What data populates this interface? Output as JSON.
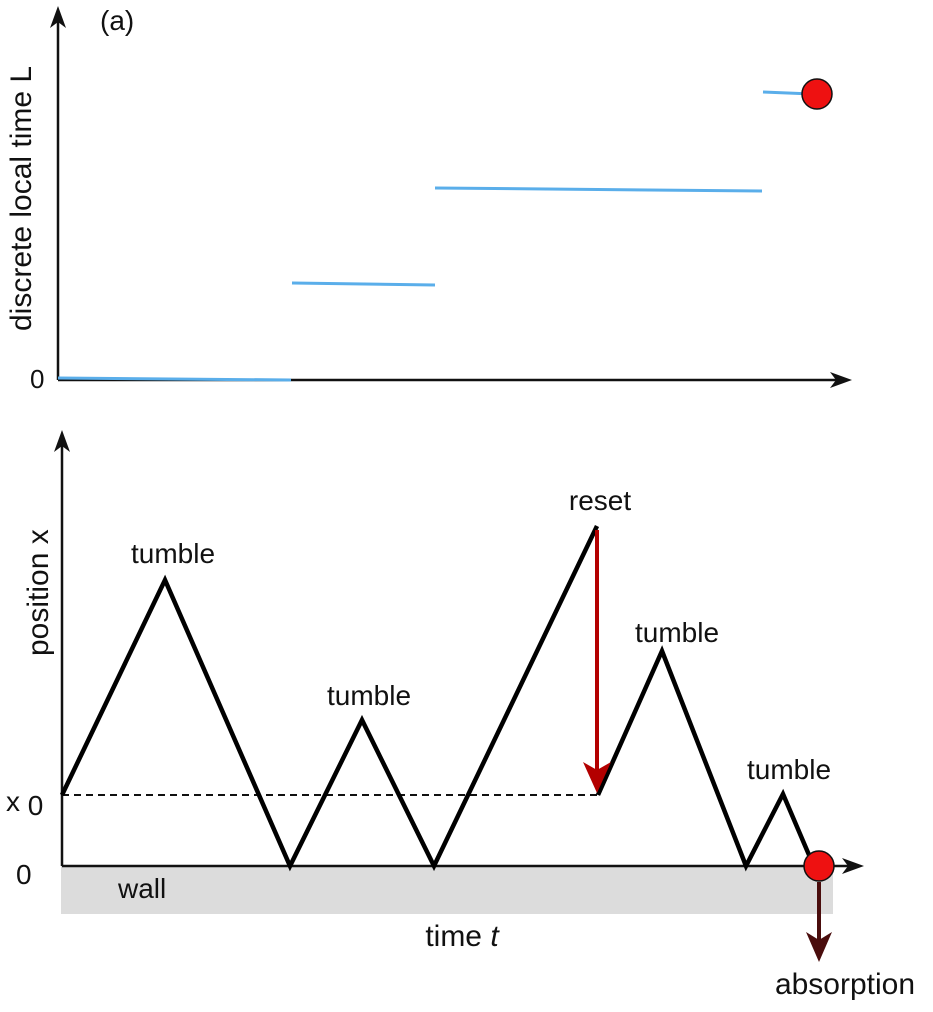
{
  "panel_label": "(a)",
  "top_panel": {
    "ylabel": "discrete local time L",
    "zero_label": "0"
  },
  "bottom_panel": {
    "ylabel": "position x",
    "x0_label": "x0",
    "zero_label": "0",
    "xlabel": "time t",
    "xlabel_main": "time",
    "xlabel_var": "t",
    "wall_label": "wall",
    "reset_label": "reset",
    "tumble_labels": [
      "tumble",
      "tumble",
      "tumble",
      "tumble"
    ],
    "absorption_label": "absorption"
  },
  "colors": {
    "local_time_segments": "#5aaeea",
    "trajectory": "#000000",
    "reset_arrow": "#b30000",
    "absorption_arrow": "#4a0d0d",
    "absorption_dot": "#ee1111",
    "wall_fill": "#dcdcdc"
  }
}
